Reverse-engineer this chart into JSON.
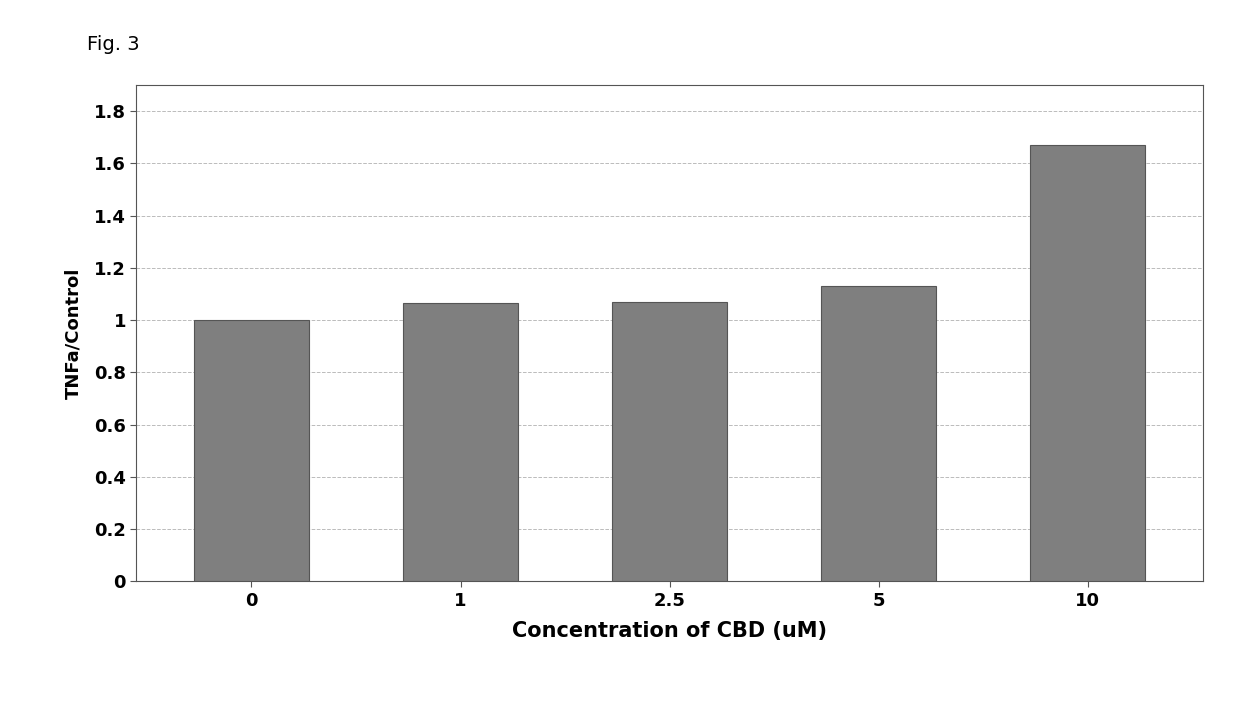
{
  "categories": [
    "0",
    "1",
    "2.5",
    "5",
    "10"
  ],
  "values": [
    1.0,
    1.065,
    1.07,
    1.13,
    1.67
  ],
  "bar_color": "#7f7f7f",
  "bar_edge_color": "#555555",
  "xlabel": "Concentration of CBD (uM)",
  "ylabel": "TNFa/Control",
  "ylim": [
    0,
    1.9
  ],
  "yticks": [
    0,
    0.2,
    0.4,
    0.6,
    0.8,
    1.0,
    1.2,
    1.4,
    1.6,
    1.8
  ],
  "ytick_labels": [
    "0",
    "0.2",
    "0.4",
    "0.6",
    "0.8",
    "1",
    "1.2",
    "1.4",
    "1.6",
    "1.8"
  ],
  "xlabel_fontsize": 15,
  "ylabel_fontsize": 13,
  "tick_fontsize": 13,
  "fig_background": "#ffffff",
  "axes_background": "#ffffff",
  "grid_color": "#bbbbbb",
  "fig_label": "Fig. 3",
  "fig_label_fontsize": 14
}
